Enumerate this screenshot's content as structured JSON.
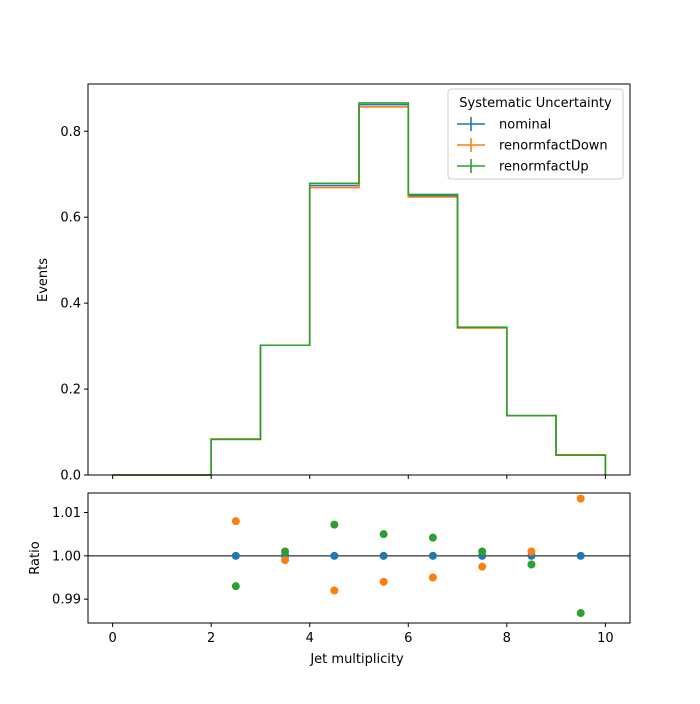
{
  "chart_data": [
    {
      "type": "line",
      "drawstyle": "steps",
      "xlabel": "",
      "ylabel": "Events",
      "xlim": [
        -0.5,
        10.5
      ],
      "ylim": [
        0.0,
        0.91
      ],
      "x_ticks": [
        0,
        2,
        4,
        6,
        8,
        10
      ],
      "y_ticks": [
        0.0,
        0.2,
        0.4,
        0.6,
        0.8
      ],
      "y_tick_labels": [
        "0.0",
        "0.2",
        "0.4",
        "0.6",
        "0.8"
      ],
      "bin_edges": [
        0,
        1,
        2,
        3,
        4,
        5,
        6,
        7,
        8,
        9,
        10
      ],
      "legend": {
        "title": "Systematic Uncertainty",
        "placement": "upper right"
      },
      "series": [
        {
          "name": "nominal",
          "color": "#1f77b4",
          "values": [
            0.0,
            0.0,
            0.083,
            0.302,
            0.674,
            0.862,
            0.65,
            0.343,
            0.138,
            0.046
          ]
        },
        {
          "name": "renormfactDown",
          "color": "#ff7f0e",
          "values": [
            0.0,
            0.0,
            0.084,
            0.302,
            0.669,
            0.857,
            0.647,
            0.342,
            0.138,
            0.047
          ]
        },
        {
          "name": "renormfactUp",
          "color": "#2ca02c",
          "values": [
            0.0,
            0.0,
            0.083,
            0.302,
            0.679,
            0.866,
            0.653,
            0.344,
            0.138,
            0.046
          ]
        }
      ]
    },
    {
      "type": "scatter",
      "xlabel": "Jet multiplicity",
      "ylabel": "Ratio",
      "xlim": [
        -0.5,
        10.5
      ],
      "ylim": [
        0.9845,
        1.0145
      ],
      "x_ticks": [
        0,
        2,
        4,
        6,
        8,
        10
      ],
      "x_tick_labels": [
        "0",
        "2",
        "4",
        "6",
        "8",
        "10"
      ],
      "y_ticks": [
        0.99,
        1.0,
        1.01
      ],
      "y_tick_labels": [
        "0.99",
        "1.00",
        "1.01"
      ],
      "reference_line": 1.0,
      "x": [
        2.5,
        3.5,
        4.5,
        5.5,
        6.5,
        7.5,
        8.5,
        9.5
      ],
      "series": [
        {
          "name": "nominal",
          "color": "#1f77b4",
          "values": [
            1.0,
            1.0,
            1.0,
            1.0,
            1.0,
            1.0,
            1.0,
            1.0
          ]
        },
        {
          "name": "renormfactDown",
          "color": "#ff7f0e",
          "values": [
            1.008,
            0.999,
            0.992,
            0.994,
            0.995,
            0.9975,
            1.001,
            1.0132
          ]
        },
        {
          "name": "renormfactUp",
          "color": "#2ca02c",
          "values": [
            0.993,
            1.001,
            1.0072,
            1.005,
            1.0042,
            1.001,
            0.998,
            0.9868
          ]
        }
      ]
    }
  ]
}
